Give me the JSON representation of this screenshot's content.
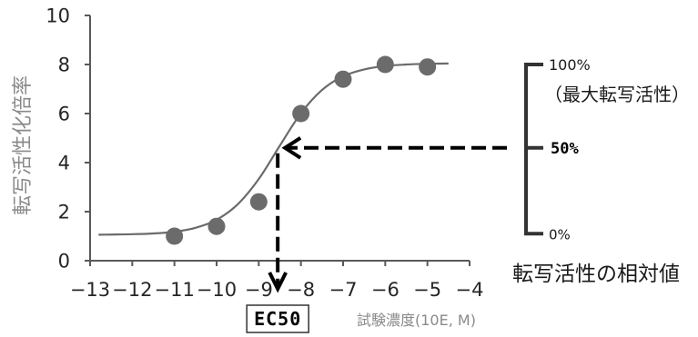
{
  "chart_data": {
    "type": "scatter",
    "xlim": [
      -13,
      -4
    ],
    "ylim": [
      0,
      10
    ],
    "x_ticks": [
      -13,
      -12,
      -11,
      -10,
      -9,
      -8,
      -7,
      -6,
      -5,
      -4
    ],
    "x_tick_labels": [
      "−13",
      "−12",
      "−11",
      "−10",
      "−9",
      "−8",
      "−7",
      "−6",
      "−5",
      "−4"
    ],
    "y_ticks": [
      0,
      2,
      4,
      6,
      8,
      10
    ],
    "y_tick_labels": [
      "0",
      "2",
      "4",
      "6",
      "8",
      "10"
    ],
    "xlabel": "試験濃度(10E, M)",
    "ylabel": "転写活性化倍率",
    "grid": false,
    "series": [
      {
        "type": "scatter",
        "color": "#6b6b6b",
        "x": [
          -11,
          -10,
          -9,
          -8,
          -7,
          -6,
          -5
        ],
        "y": [
          1.0,
          1.4,
          2.4,
          6.0,
          7.4,
          8.0,
          7.9
        ]
      },
      {
        "type": "line",
        "color": "#6b6b6b",
        "x": [
          -12.8,
          -12,
          -11.5,
          -11,
          -10.5,
          -10,
          -9.5,
          -9,
          -8.5,
          -8,
          -7.5,
          -7,
          -6.5,
          -6,
          -5.5,
          -5,
          -4.5
        ],
        "y": [
          1.06,
          1.08,
          1.11,
          1.18,
          1.34,
          1.67,
          2.3,
          3.33,
          4.69,
          6.01,
          6.96,
          7.52,
          7.8,
          7.94,
          8.0,
          8.03,
          8.04
        ]
      }
    ],
    "annotations": {
      "ec50": {
        "label": "EC50",
        "x": -8.55,
        "y": 4.6
      },
      "relative_activity_scale": {
        "title": "転写活性の相対値",
        "max": {
          "y": 8.0,
          "label": "100%",
          "sublabel": "（最大転写活性）"
        },
        "half": {
          "y": 4.6,
          "label": "50%"
        },
        "min": {
          "y": 1.1,
          "label": "0%"
        }
      }
    }
  },
  "colors": {
    "axis": "#595959",
    "tick_text": "#262626",
    "axis_title": "#8a8a8a",
    "annotation": "#000000",
    "bracket": "#333333",
    "label_box_border": "#333333",
    "background": "#ffffff"
  }
}
